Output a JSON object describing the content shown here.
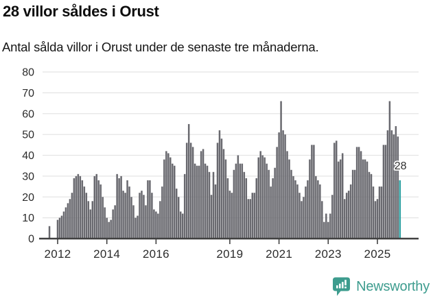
{
  "header": {
    "title": "28 villor såldes i Orust",
    "subtitle": "Antal sålda villor i Orust under de senaste tre månaderna."
  },
  "chart_data": {
    "type": "bar",
    "title": "28 villor såldes i Orust",
    "subtitle": "Antal sålda villor i Orust under de senaste tre månaderna.",
    "x_unit": "month",
    "x_start": "2011-09",
    "x_end": "2025-12",
    "values": [
      6,
      0,
      0,
      0,
      9,
      10,
      11,
      13,
      15,
      17,
      19,
      22,
      29,
      30,
      31,
      30,
      28,
      25,
      22,
      18,
      14,
      18,
      30,
      31,
      28,
      26,
      20,
      15,
      10,
      8,
      9,
      14,
      16,
      31,
      29,
      30,
      23,
      22,
      28,
      25,
      20,
      16,
      10,
      11,
      22,
      23,
      21,
      16,
      28,
      28,
      22,
      14,
      13,
      12,
      18,
      25,
      38,
      42,
      41,
      39,
      36,
      35,
      24,
      20,
      13,
      12,
      31,
      46,
      55,
      46,
      44,
      36,
      35,
      35,
      42,
      43,
      36,
      35,
      32,
      21,
      32,
      26,
      46,
      52,
      48,
      43,
      38,
      29,
      23,
      22,
      33,
      36,
      40,
      36,
      36,
      32,
      29,
      19,
      19,
      22,
      22,
      29,
      39,
      42,
      40,
      39,
      36,
      33,
      25,
      29,
      34,
      44,
      51,
      66,
      52,
      50,
      42,
      38,
      33,
      30,
      28,
      26,
      22,
      18,
      20,
      25,
      28,
      38,
      45,
      45,
      30,
      28,
      26,
      18,
      8,
      12,
      8,
      12,
      21,
      46,
      47,
      37,
      38,
      41,
      19,
      22,
      23,
      26,
      33,
      33,
      44,
      44,
      42,
      38,
      38,
      37,
      32,
      31,
      25,
      18,
      19,
      25,
      25,
      45,
      45,
      52,
      66,
      52,
      50,
      54,
      49,
      28
    ],
    "highlight_last_value": 28,
    "annotation": "28",
    "bar_color": "#69696f",
    "highlight_color": "#2ea1a2",
    "grid": true,
    "ylim": [
      0,
      80
    ],
    "y_ticks": [
      0,
      10,
      20,
      30,
      40,
      50,
      60,
      70,
      80
    ],
    "x_tick_years": [
      "2012",
      "2014",
      "2016",
      "2019",
      "2021",
      "2023",
      "2025"
    ],
    "xlabel": "",
    "ylabel": ""
  },
  "footer": {
    "brand": "Newsworthy",
    "brand_color": "#3d9c8e"
  }
}
